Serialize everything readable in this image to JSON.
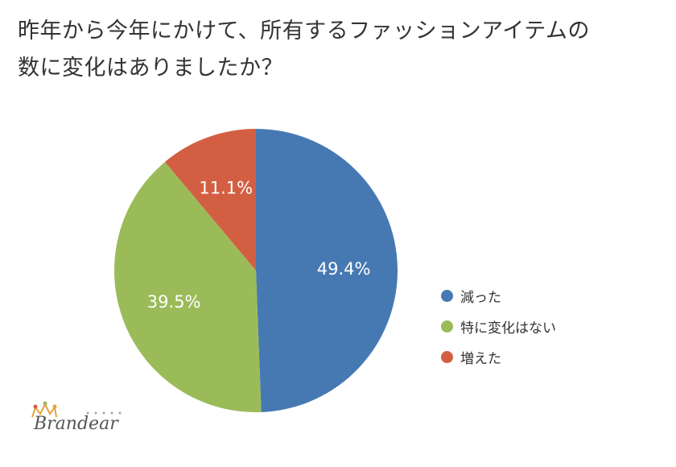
{
  "title_lines": [
    "昨年から今年にかけて、所有するファッションアイテムの",
    "数に変化はありましたか？"
  ],
  "chart_data": {
    "type": "pie",
    "title": "昨年から今年にかけて、所有するファッションアイテムの数に変化はありましたか？",
    "slices": [
      {
        "label": "減った",
        "value": 49.4,
        "display": "49.4%",
        "color": "#4679b2"
      },
      {
        "label": "特に変化はない",
        "value": 39.5,
        "display": "39.5%",
        "color": "#9bbb59"
      },
      {
        "label": "増えた",
        "value": 11.1,
        "display": "11.1%",
        "color": "#d35f43"
      }
    ],
    "start_angle": "12 o'clock",
    "direction": "clockwise",
    "legend_position": "right"
  },
  "logo": {
    "text": "Brandear",
    "icon": "crown-icon"
  }
}
